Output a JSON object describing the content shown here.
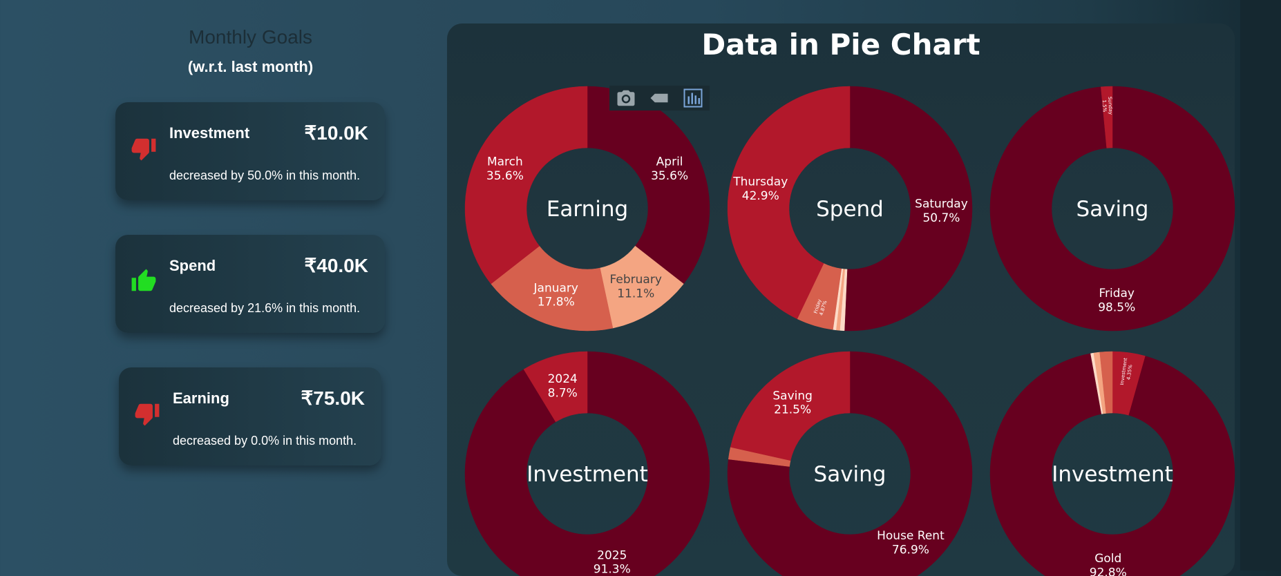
{
  "sidebar": {
    "title": "Monthly Goals",
    "subtitle": "(w.r.t. last month)",
    "cards": [
      {
        "label": "Investment",
        "value": "₹10.0K",
        "desc": "decreased by 50.0% in this month.",
        "trend": "down",
        "icon": "thumbs-down-icon"
      },
      {
        "label": "Spend",
        "value": "₹40.0K",
        "desc": "decreased by 21.6% in this month.",
        "trend": "up",
        "icon": "thumbs-up-icon"
      },
      {
        "label": "Earning",
        "value": "₹75.0K",
        "desc": "decreased by 0.0% in this month.",
        "trend": "down",
        "icon": "thumbs-down-icon"
      }
    ]
  },
  "panel": {
    "title": "Data in Pie Chart",
    "modebar": [
      "camera-icon",
      "eraser-icon",
      "bar-chart-icon"
    ]
  },
  "colors": {
    "darkred": "#67001f",
    "red": "#b2182b",
    "coral": "#d6604d",
    "salmon": "#f4a582",
    "peach": "#fddbc7",
    "thumbs_down": "#d32f2f",
    "thumbs_up": "#22dd22"
  },
  "chart_data": [
    {
      "type": "pie",
      "hole": true,
      "center_label": "Earning",
      "slices": [
        {
          "label": "April",
          "value": 35.6,
          "text": "35.6%"
        },
        {
          "label": "February",
          "value": 11.1,
          "text": "11.1%"
        },
        {
          "label": "January",
          "value": 17.8,
          "text": "17.8%"
        },
        {
          "label": "March",
          "value": 35.6,
          "text": "35.6%"
        }
      ]
    },
    {
      "type": "pie",
      "hole": true,
      "center_label": "Spend",
      "slices": [
        {
          "label": "Saturday",
          "value": 50.7,
          "text": "50.7%"
        },
        {
          "label": "",
          "value": 0.6,
          "text": ""
        },
        {
          "label": "",
          "value": 0.5,
          "text": ""
        },
        {
          "label": "",
          "value": 0.4,
          "text": ""
        },
        {
          "label": "Friday",
          "value": 4.87,
          "text": "4.87%"
        },
        {
          "label": "Thursday",
          "value": 42.9,
          "text": "42.9%"
        }
      ]
    },
    {
      "type": "pie",
      "hole": true,
      "center_label": "Saving",
      "slices": [
        {
          "label": "Friday",
          "value": 98.5,
          "text": "98.5%"
        },
        {
          "label": "Sunday",
          "value": 1.5,
          "text": "1.5%"
        }
      ]
    },
    {
      "type": "pie",
      "hole": true,
      "center_label": "Investment",
      "slices": [
        {
          "label": "2025",
          "value": 91.3,
          "text": "91.3%"
        },
        {
          "label": "2024",
          "value": 8.7,
          "text": "8.7%"
        }
      ]
    },
    {
      "type": "pie",
      "hole": true,
      "center_label": "Saving",
      "slices": [
        {
          "label": "House Rent",
          "value": 76.9,
          "text": "76.9%"
        },
        {
          "label": "",
          "value": 1.6,
          "text": ""
        },
        {
          "label": "Saving",
          "value": 21.5,
          "text": "21.5%"
        }
      ]
    },
    {
      "type": "pie",
      "hole": true,
      "center_label": "Investment",
      "slices": [
        {
          "label": "Investment",
          "value": 4.35,
          "text": "4.35%"
        },
        {
          "label": "Gold",
          "value": 92.8,
          "text": "92.8%"
        },
        {
          "label": "",
          "value": 0.4,
          "text": ""
        },
        {
          "label": "",
          "value": 0.8,
          "text": ""
        },
        {
          "label": "",
          "value": 1.65,
          "text": ""
        }
      ]
    }
  ]
}
